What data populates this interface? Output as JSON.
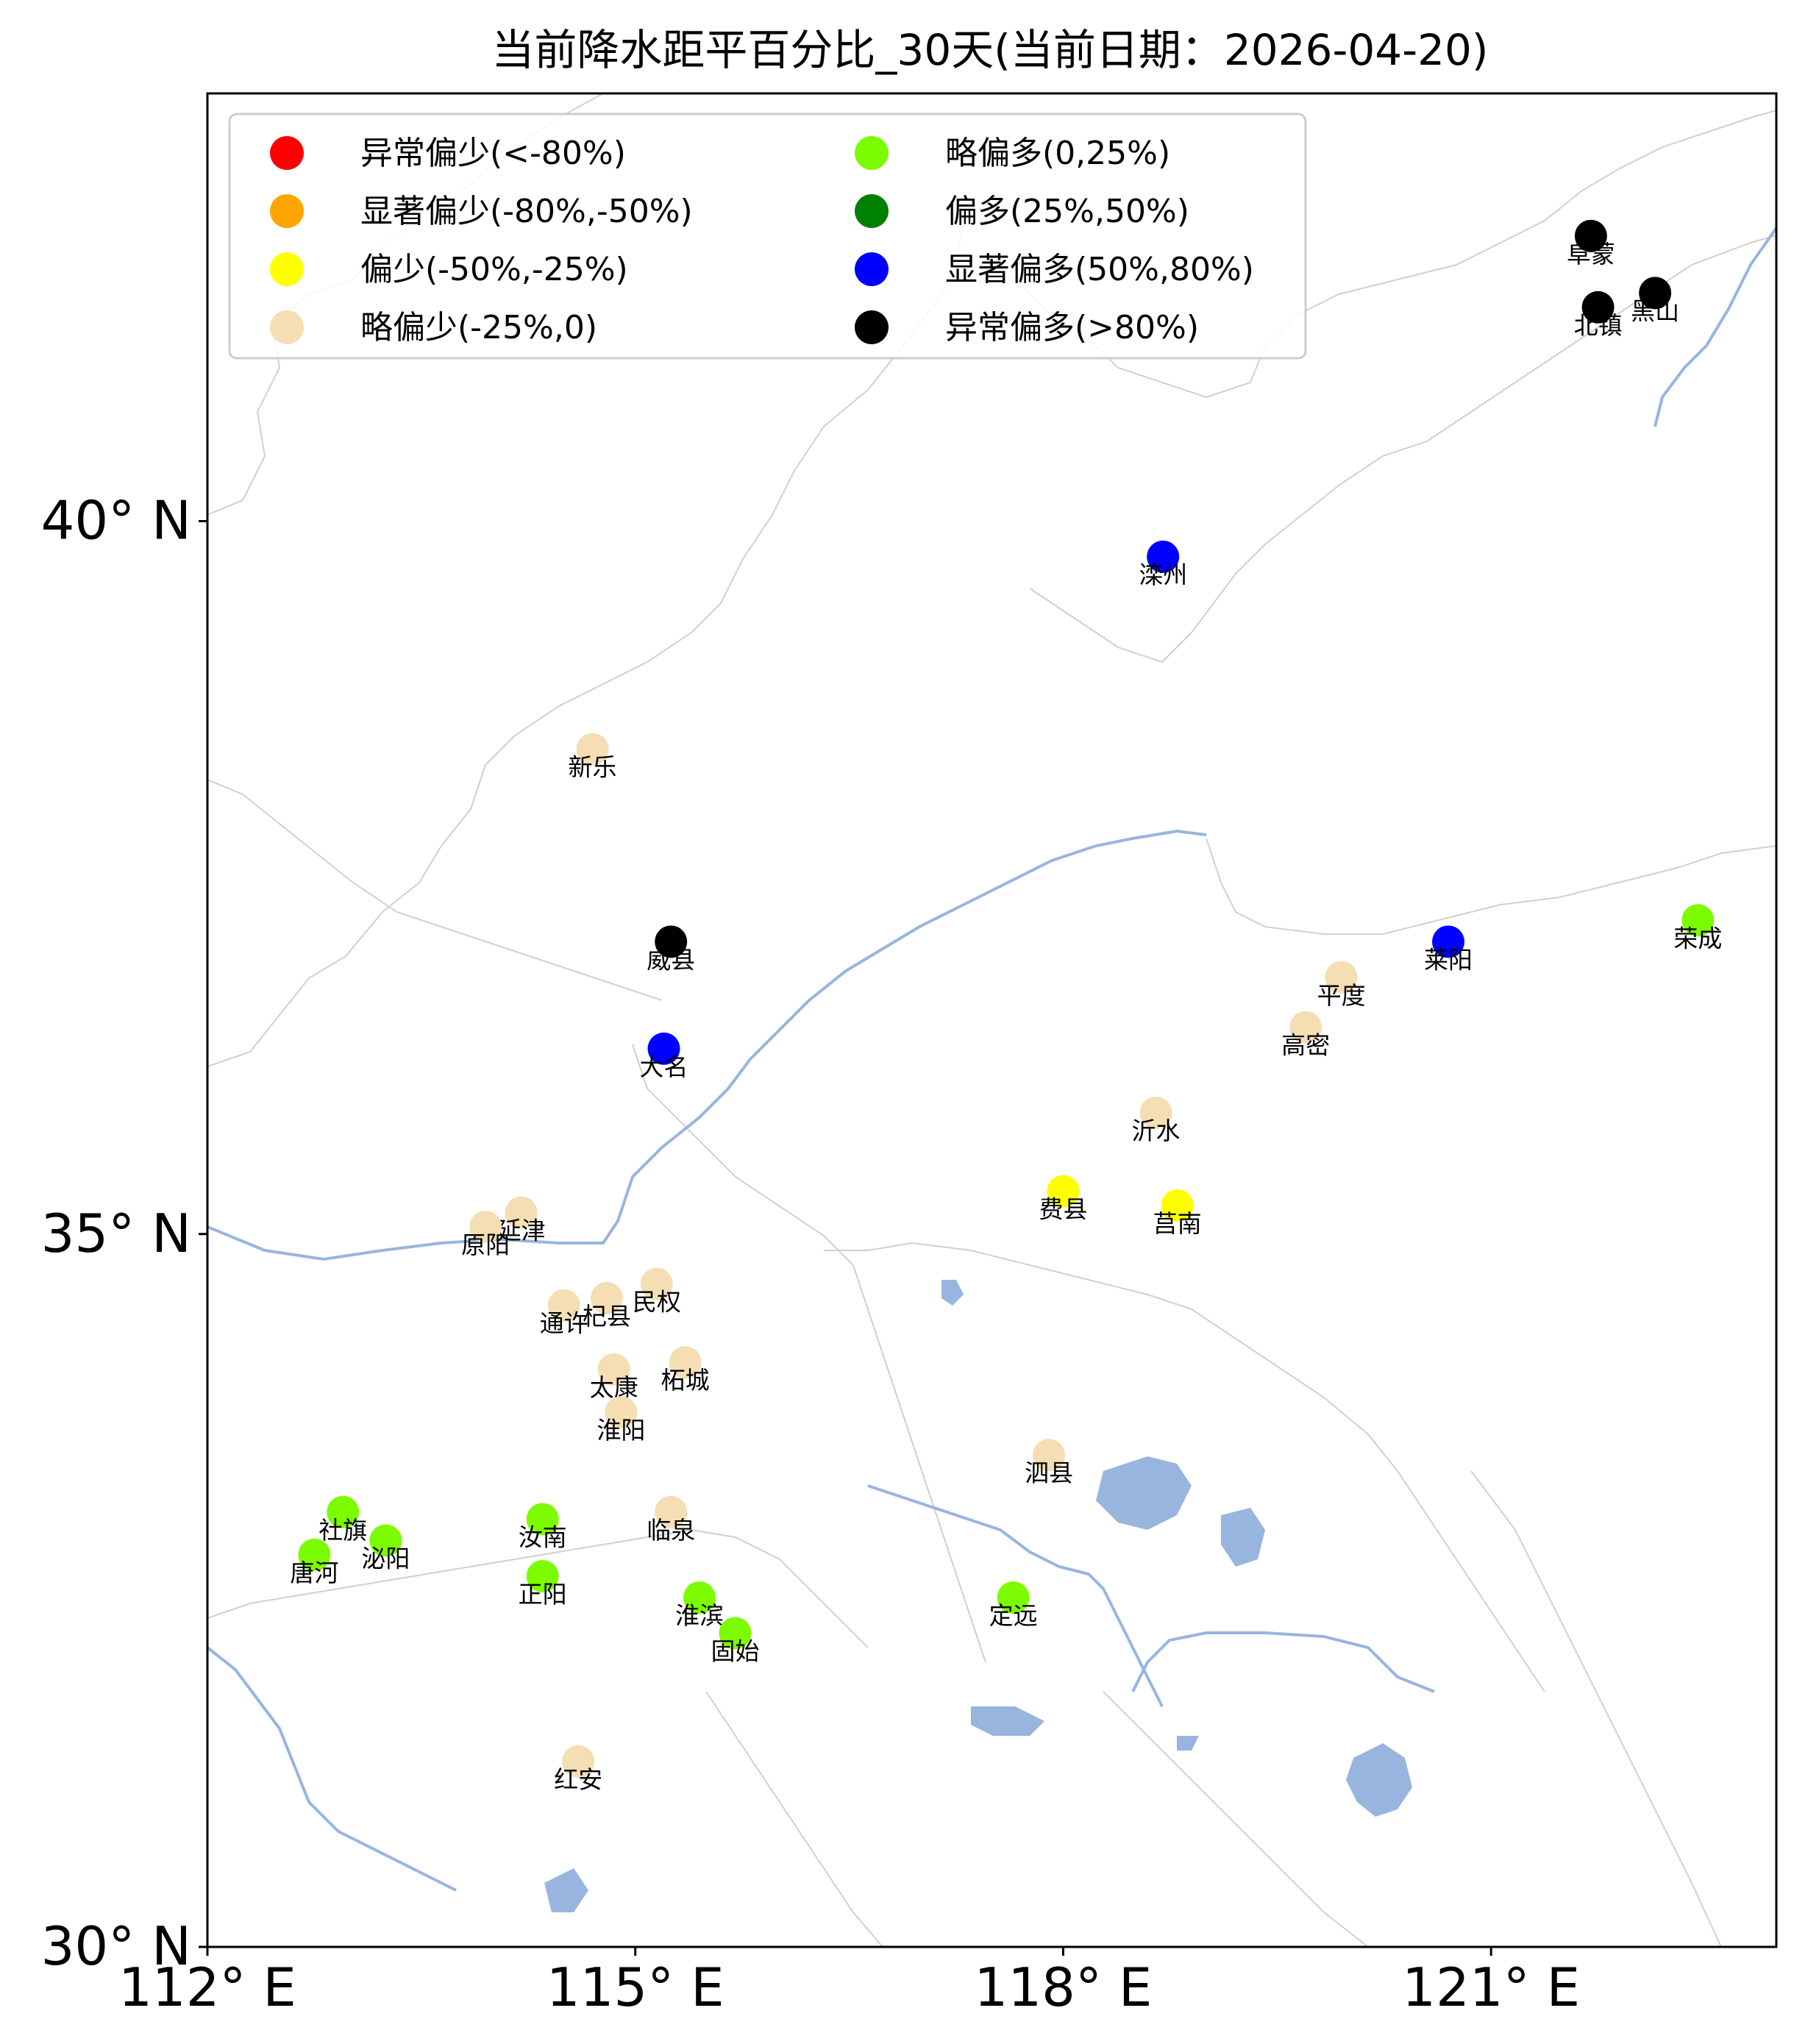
{
  "title": "当前降水距平百分比_30天(当前日期：2026-04-20)",
  "map": {
    "lon_range": [
      112,
      123
    ],
    "lat_range": [
      30,
      43
    ],
    "x_ticks": [
      {
        "value": 112,
        "label": "112° E"
      },
      {
        "value": 115,
        "label": "115° E"
      },
      {
        "value": 118,
        "label": "118° E"
      },
      {
        "value": 121,
        "label": "121° E"
      }
    ],
    "y_ticks": [
      {
        "value": 30,
        "label": "30° N"
      },
      {
        "value": 35,
        "label": "35° N"
      },
      {
        "value": 40,
        "label": "40° N"
      }
    ]
  },
  "legend": {
    "placement": "top-left",
    "items": [
      {
        "label": "异常偏少(<-80%)",
        "color": "#ff0000"
      },
      {
        "label": "显著偏少(-80%,-50%)",
        "color": "#ffa500"
      },
      {
        "label": "偏少(-50%,-25%)",
        "color": "#ffff00"
      },
      {
        "label": "略偏少(-25%,0)",
        "color": "#f5deb3"
      },
      {
        "label": "略偏多(0,25%)",
        "color": "#7cfc00"
      },
      {
        "label": "偏多(25%,50%)",
        "color": "#008000"
      },
      {
        "label": "显著偏多(50%,80%)",
        "color": "#0000ff"
      },
      {
        "label": "异常偏多(>80%)",
        "color": "#000000"
      }
    ]
  },
  "stations": [
    {
      "name": "阜蒙",
      "lon": 121.7,
      "lat": 42.0,
      "category": 7
    },
    {
      "name": "北镇",
      "lon": 121.75,
      "lat": 41.5,
      "category": 7
    },
    {
      "name": "黑山",
      "lon": 122.15,
      "lat": 41.6,
      "category": 7
    },
    {
      "name": "滦州",
      "lon": 118.7,
      "lat": 39.75,
      "category": 6
    },
    {
      "name": "新乐",
      "lon": 114.7,
      "lat": 38.4,
      "category": 3
    },
    {
      "name": "威县",
      "lon": 115.25,
      "lat": 37.05,
      "category": 7
    },
    {
      "name": "大名",
      "lon": 115.2,
      "lat": 36.3,
      "category": 6
    },
    {
      "name": "荣成",
      "lon": 122.45,
      "lat": 37.2,
      "category": 4
    },
    {
      "name": "莱阳",
      "lon": 120.7,
      "lat": 37.05,
      "category": 6
    },
    {
      "name": "平度",
      "lon": 119.95,
      "lat": 36.8,
      "category": 3
    },
    {
      "name": "高密",
      "lon": 119.7,
      "lat": 36.45,
      "category": 3
    },
    {
      "name": "沂水",
      "lon": 118.65,
      "lat": 35.85,
      "category": 3
    },
    {
      "name": "费县",
      "lon": 118.0,
      "lat": 35.3,
      "category": 2
    },
    {
      "name": "莒南",
      "lon": 118.8,
      "lat": 35.2,
      "category": 2
    },
    {
      "name": "延津",
      "lon": 114.2,
      "lat": 35.15,
      "category": 3
    },
    {
      "name": "原阳",
      "lon": 113.95,
      "lat": 35.05,
      "category": 3
    },
    {
      "name": "民权",
      "lon": 115.15,
      "lat": 34.65,
      "category": 3
    },
    {
      "name": "杞县",
      "lon": 114.8,
      "lat": 34.55,
      "category": 3
    },
    {
      "name": "通许",
      "lon": 114.5,
      "lat": 34.5,
      "category": 3
    },
    {
      "name": "太康",
      "lon": 114.85,
      "lat": 34.05,
      "category": 3
    },
    {
      "name": "柘城",
      "lon": 115.35,
      "lat": 34.1,
      "category": 3
    },
    {
      "name": "淮阳",
      "lon": 114.9,
      "lat": 33.75,
      "category": 3
    },
    {
      "name": "泗县",
      "lon": 117.9,
      "lat": 33.45,
      "category": 3
    },
    {
      "name": "社旗",
      "lon": 112.95,
      "lat": 33.05,
      "category": 4
    },
    {
      "name": "泌阳",
      "lon": 113.25,
      "lat": 32.85,
      "category": 4
    },
    {
      "name": "唐河",
      "lon": 112.75,
      "lat": 32.75,
      "category": 4
    },
    {
      "name": "汝南",
      "lon": 114.35,
      "lat": 33.0,
      "category": 4
    },
    {
      "name": "临泉",
      "lon": 115.25,
      "lat": 33.05,
      "category": 3
    },
    {
      "name": "正阳",
      "lon": 114.35,
      "lat": 32.6,
      "category": 4
    },
    {
      "name": "淮滨",
      "lon": 115.45,
      "lat": 32.45,
      "category": 4
    },
    {
      "name": "固始",
      "lon": 115.7,
      "lat": 32.2,
      "category": 4
    },
    {
      "name": "定远",
      "lon": 117.65,
      "lat": 32.45,
      "category": 4
    },
    {
      "name": "红安",
      "lon": 114.6,
      "lat": 31.3,
      "category": 3
    }
  ]
}
